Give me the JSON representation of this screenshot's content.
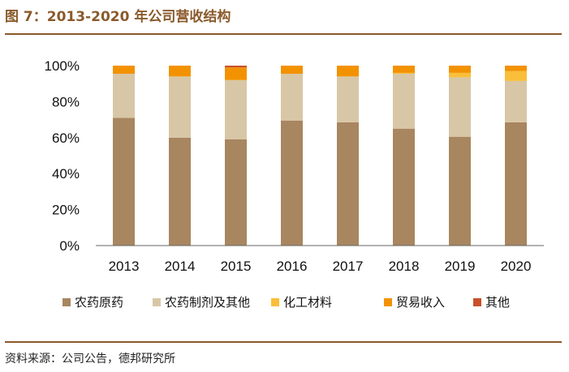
{
  "figure": {
    "title": "图 7：2013-2020 年公司营收结构",
    "source": "资料来源：公司公告，德邦研究所"
  },
  "chart_data": {
    "type": "bar",
    "stacked": true,
    "categories": [
      "2013",
      "2014",
      "2015",
      "2016",
      "2017",
      "2018",
      "2019",
      "2020"
    ],
    "ylim": [
      0,
      100
    ],
    "yticks": [
      0,
      20,
      40,
      60,
      80,
      100
    ],
    "ytick_labels": [
      "0%",
      "20%",
      "40%",
      "60%",
      "80%",
      "100%"
    ],
    "legend_position": "bottom",
    "series": [
      {
        "name": "农药原药",
        "color": "#a88660",
        "values": [
          71,
          60,
          59,
          69.5,
          68.5,
          65,
          60.5,
          68.5
        ]
      },
      {
        "name": "农药制剂及其他",
        "color": "#d8c7a6",
        "values": [
          24.5,
          34,
          33,
          26,
          25.5,
          30.5,
          33,
          23
        ]
      },
      {
        "name": "化工材料",
        "color": "#f9be3a",
        "values": [
          0,
          0,
          0,
          0,
          0,
          0.5,
          2.5,
          5.5
        ]
      },
      {
        "name": "贸易收入",
        "color": "#f39200",
        "values": [
          4.5,
          6,
          7,
          4.5,
          6,
          4,
          4,
          3
        ]
      },
      {
        "name": "其他",
        "color": "#c9512a",
        "values": [
          0,
          0,
          1,
          0,
          0,
          0,
          0,
          0
        ]
      }
    ]
  }
}
